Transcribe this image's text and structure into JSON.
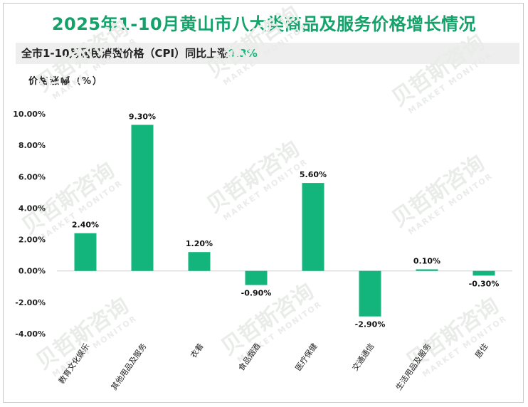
{
  "title": "2025年1-10月黄山市八大类商品及服务价格增长情况",
  "subtitle": {
    "prefix": "全市1-10月居民消费价格（CPI）同比上涨",
    "highlight": "0.3%"
  },
  "watermark": {
    "brand": "贝哲斯咨询",
    "sub": "MARKET MONITOR"
  },
  "colors": {
    "bar": "#13b57c",
    "title": "#13a36a",
    "highlight": "#14b47a"
  },
  "chart_data": {
    "type": "bar",
    "ylabel": "价格涨幅（%）",
    "categories": [
      "教育文化娱乐",
      "其他用品及服务",
      "衣着",
      "食品烟酒",
      "医疗保健",
      "交通通信",
      "生活用品及服务",
      "居住"
    ],
    "values": [
      2.4,
      9.3,
      1.2,
      -0.9,
      5.6,
      -2.9,
      0.1,
      -0.3
    ],
    "value_labels": [
      "2.40%",
      "9.30%",
      "1.20%",
      "-0.90%",
      "5.60%",
      "-2.90%",
      "0.10%",
      "-0.30%"
    ],
    "ylim": [
      -4,
      10
    ],
    "yticks": [
      10,
      8,
      6,
      4,
      2,
      0,
      -2,
      -4
    ],
    "ytick_labels": [
      "10.00%",
      "8.00%",
      "6.00%",
      "4.00%",
      "2.00%",
      "0.00%",
      "-2.00%",
      "-4.00%"
    ],
    "grid": false,
    "legend": "none"
  }
}
